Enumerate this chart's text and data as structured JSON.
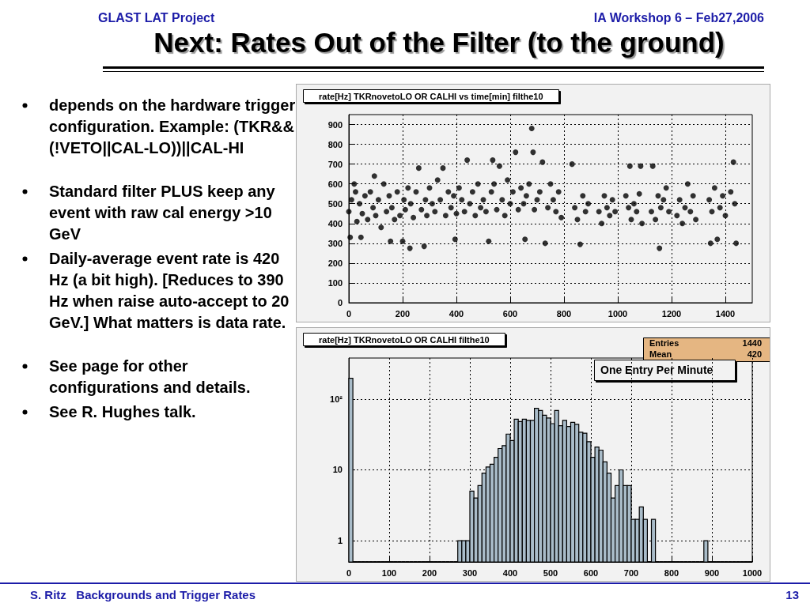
{
  "chart_data": [
    {
      "type": "other",
      "title": "Next: Rates Out of the Filter (to the ground)",
      "annotations": [
        "GLAST LAT Project",
        "IA Workshop 6 –  Feb27,2006",
        "depends on the hardware trigger configuration. Example: (TKR&&(!VETO||CAL-LO))||CAL-HI",
        "Standard filter PLUS keep any event with raw cal energy >10 GeV",
        "Daily-average event rate is 420 Hz (a bit high). [Reduces to 390 Hz when raise auto-accept to 20 GeV.]  What matters is data rate.",
        "See page for other configurations and details.",
        "See R. Hughes talk.",
        "S. Ritz   Backgrounds and Trigger Rates",
        "13"
      ]
    },
    {
      "type": "scatter",
      "title": "rate[Hz] TKRnovetoLO OR CALHI vs time[min] filthe10",
      "color": "#000000",
      "grid": true,
      "marker": "circle",
      "x": [
        0,
        5,
        10,
        20,
        25,
        30,
        40,
        45,
        50,
        60,
        70,
        80,
        90,
        95,
        100,
        110,
        120,
        130,
        140,
        150,
        155,
        160,
        170,
        180,
        190,
        200,
        205,
        210,
        220,
        227,
        230,
        240,
        250,
        260,
        270,
        280,
        285,
        290,
        300,
        310,
        320,
        330,
        340,
        350,
        360,
        370,
        380,
        390,
        395,
        400,
        410,
        420,
        430,
        440,
        450,
        460,
        470,
        480,
        490,
        500,
        510,
        520,
        530,
        535,
        540,
        550,
        560,
        570,
        580,
        590,
        600,
        610,
        620,
        630,
        640,
        650,
        655,
        660,
        670,
        680,
        685,
        690,
        700,
        710,
        720,
        730,
        740,
        750,
        760,
        770,
        780,
        790,
        830,
        840,
        850,
        860,
        870,
        880,
        890,
        930,
        940,
        950,
        960,
        970,
        980,
        990,
        1030,
        1040,
        1045,
        1050,
        1060,
        1070,
        1080,
        1085,
        1090,
        1125,
        1130,
        1140,
        1150,
        1155,
        1160,
        1170,
        1180,
        1190,
        1220,
        1230,
        1240,
        1250,
        1260,
        1270,
        1280,
        1290,
        1340,
        1345,
        1350,
        1360,
        1370,
        1380,
        1390,
        1400,
        1420,
        1430,
        1435,
        1440
      ],
      "values": [
        460,
        330,
        520,
        600,
        560,
        410,
        500,
        330,
        450,
        540,
        420,
        560,
        480,
        640,
        440,
        520,
        380,
        600,
        460,
        540,
        310,
        480,
        420,
        560,
        440,
        310,
        520,
        470,
        580,
        275,
        500,
        430,
        560,
        680,
        470,
        285,
        520,
        440,
        580,
        500,
        460,
        620,
        520,
        680,
        440,
        560,
        480,
        540,
        320,
        450,
        580,
        520,
        460,
        720,
        500,
        560,
        440,
        600,
        480,
        520,
        460,
        310,
        560,
        720,
        600,
        470,
        690,
        520,
        440,
        620,
        500,
        560,
        760,
        470,
        580,
        500,
        320,
        540,
        600,
        880,
        760,
        470,
        520,
        560,
        710,
        300,
        480,
        600,
        520,
        460,
        560,
        430,
        700,
        480,
        420,
        295,
        540,
        460,
        500,
        460,
        400,
        540,
        480,
        440,
        520,
        460,
        540,
        480,
        690,
        420,
        500,
        460,
        550,
        690,
        400,
        460,
        690,
        420,
        540,
        275,
        480,
        520,
        580,
        460,
        440,
        520,
        400,
        480,
        600,
        460,
        540,
        420,
        520,
        300,
        460,
        580,
        320,
        480,
        540,
        440,
        560,
        710,
        500,
        300
      ],
      "xlim": [
        0,
        1500
      ],
      "xticks": [
        0,
        200,
        400,
        600,
        800,
        1000,
        1200,
        1400
      ],
      "ylim": [
        0,
        950
      ],
      "yticks": [
        0,
        100,
        200,
        300,
        400,
        500,
        600,
        700,
        800,
        900
      ]
    },
    {
      "type": "histogram",
      "title": "rate[Hz] TKRnovetoLO OR CALHI filthe10",
      "color": "#a9bcc9",
      "grid": true,
      "log": true,
      "bins": [
        0,
        10,
        20,
        30,
        40,
        50,
        60,
        70,
        80,
        90,
        100,
        110,
        120,
        130,
        140,
        150,
        160,
        170,
        180,
        190,
        200,
        210,
        220,
        230,
        240,
        250,
        260,
        270,
        280,
        290,
        300,
        310,
        320,
        330,
        340,
        350,
        360,
        370,
        380,
        390,
        400,
        410,
        420,
        430,
        440,
        450,
        460,
        470,
        480,
        490,
        500,
        510,
        520,
        530,
        540,
        550,
        560,
        570,
        580,
        590,
        600,
        610,
        620,
        630,
        640,
        650,
        660,
        670,
        680,
        690,
        700,
        710,
        720,
        730,
        740,
        750,
        760,
        770,
        780,
        790,
        800,
        810,
        820,
        830,
        840,
        850,
        860,
        870,
        880,
        890,
        900,
        910,
        920,
        930,
        940,
        950,
        960,
        970,
        980,
        990,
        1000
      ],
      "values": [
        197,
        null,
        null,
        null,
        null,
        null,
        null,
        null,
        null,
        null,
        null,
        null,
        null,
        null,
        null,
        null,
        null,
        null,
        null,
        null,
        null,
        null,
        null,
        null,
        null,
        null,
        null,
        1,
        1,
        1,
        5,
        4,
        6,
        9,
        11,
        12,
        15,
        20,
        22,
        32,
        26,
        52,
        48,
        52,
        50,
        50,
        74,
        69,
        59,
        54,
        45,
        69,
        42,
        50,
        41,
        47,
        44,
        34,
        33,
        25,
        15,
        21,
        19,
        13,
        9,
        4,
        6,
        10,
        6,
        6,
        2,
        2,
        3,
        2,
        null,
        2,
        null,
        null,
        null,
        null,
        null,
        null,
        null,
        null,
        null,
        null,
        null,
        null,
        1,
        null,
        null,
        null,
        null,
        null,
        null,
        null,
        null,
        null,
        null,
        null
      ],
      "xlim": [
        0,
        1000
      ],
      "xticks": [
        0,
        100,
        200,
        300,
        400,
        500,
        600,
        700,
        800,
        900,
        1000
      ],
      "ylim": [
        0.5,
        380
      ],
      "yticks": [
        {
          "value": 1,
          "label": "1"
        },
        {
          "value": 10,
          "label": "10"
        },
        {
          "value": 100,
          "label": "10²"
        }
      ],
      "annotations": [
        "Entries",
        "1440",
        "Mean",
        "420",
        "One Entry Per Minute"
      ]
    }
  ]
}
